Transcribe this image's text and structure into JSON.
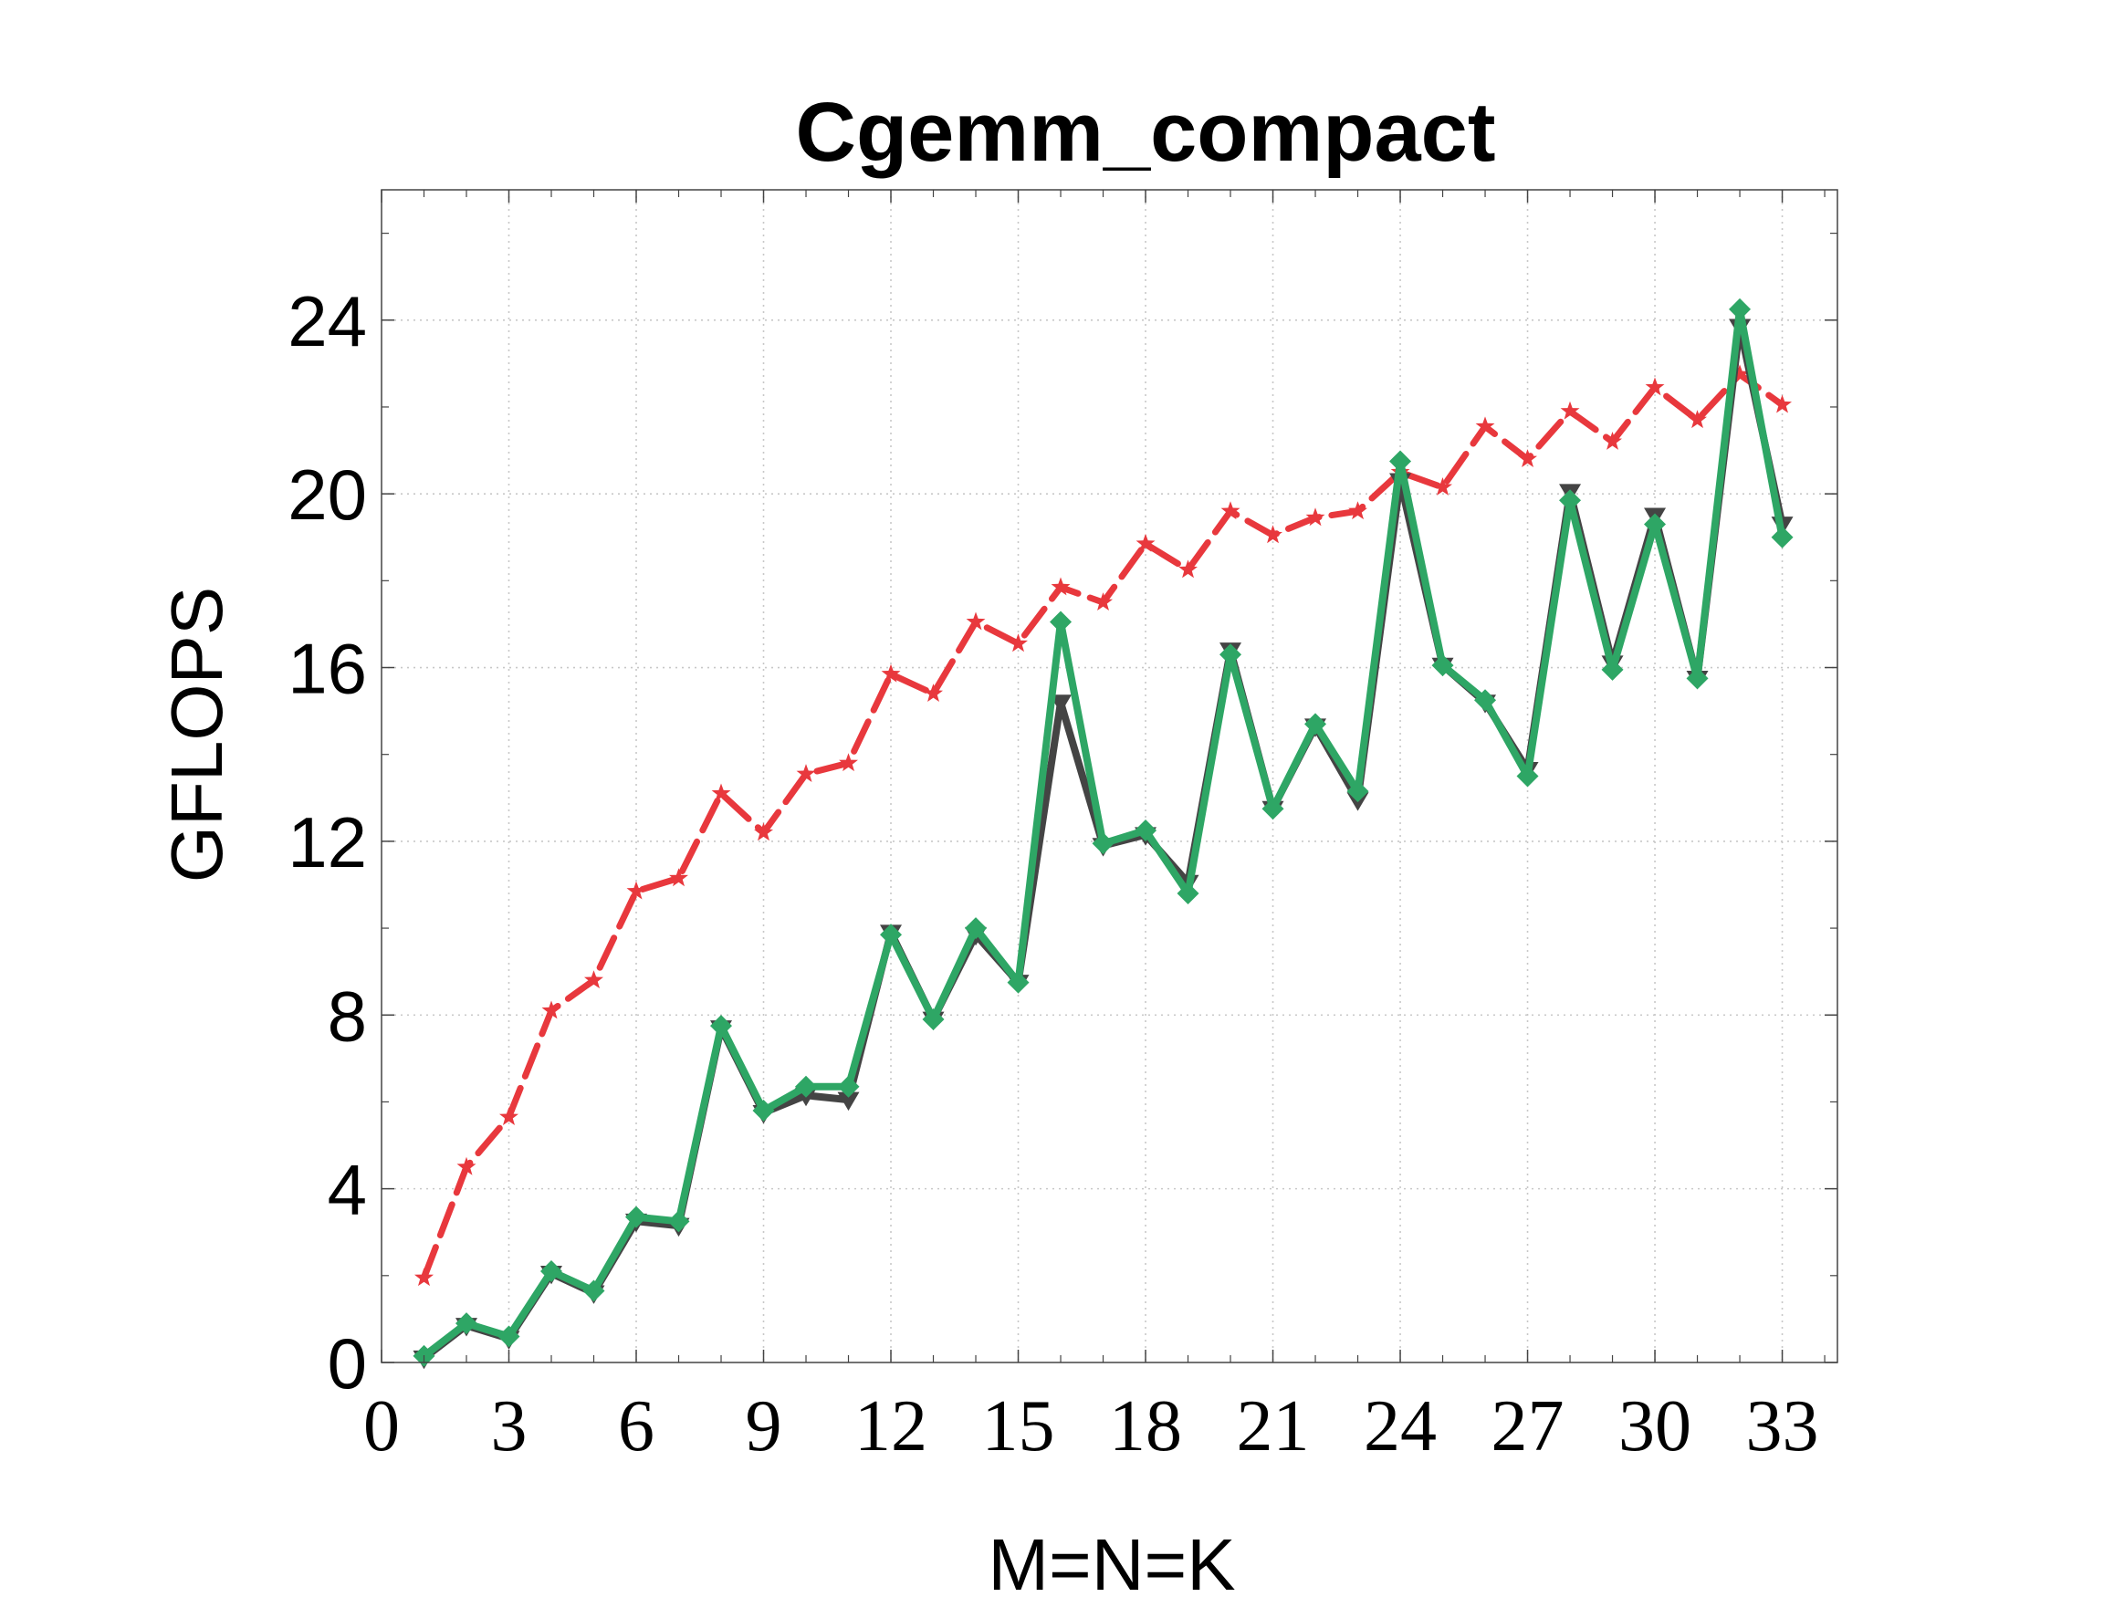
{
  "chart_data": {
    "type": "line",
    "title": "Cgemm_compact",
    "xlabel": "M=N=K",
    "ylabel": "GFLOPS",
    "xlim": [
      0,
      34.3
    ],
    "ylim": [
      0,
      27
    ],
    "xticks": [
      0,
      3,
      6,
      9,
      12,
      15,
      18,
      21,
      24,
      27,
      30,
      33
    ],
    "yticks": [
      0,
      4,
      8,
      12,
      16,
      20,
      24
    ],
    "grid": true,
    "x": [
      1,
      2,
      3,
      4,
      5,
      6,
      7,
      8,
      9,
      10,
      11,
      12,
      13,
      14,
      15,
      16,
      17,
      18,
      19,
      20,
      21,
      22,
      23,
      24,
      25,
      26,
      27,
      28,
      29,
      30,
      31,
      32,
      33
    ],
    "series": [
      {
        "marker": "star",
        "color": "#e8383d",
        "linestyle": "dashed",
        "values": [
          1.95,
          4.5,
          5.65,
          8.1,
          8.8,
          10.85,
          11.15,
          13.1,
          12.2,
          13.55,
          13.8,
          15.85,
          15.4,
          17.05,
          16.55,
          17.85,
          17.5,
          18.85,
          18.25,
          19.6,
          19.05,
          19.45,
          19.6,
          20.5,
          20.15,
          21.55,
          20.8,
          21.9,
          21.2,
          22.45,
          21.7,
          22.75,
          22.05
        ]
      },
      {
        "marker": "triangle-down",
        "color": "#444444",
        "linestyle": "solid",
        "values": [
          0.1,
          0.85,
          0.55,
          2.05,
          1.6,
          3.25,
          3.15,
          7.7,
          5.75,
          6.15,
          6.05,
          9.9,
          7.9,
          9.85,
          8.75,
          15.2,
          11.9,
          12.15,
          11.05,
          16.4,
          12.75,
          14.65,
          12.95,
          20.3,
          16.05,
          15.2,
          13.65,
          20.05,
          16.1,
          19.5,
          15.75,
          23.85,
          19.3
        ]
      },
      {
        "marker": "diamond",
        "color": "#2ea665",
        "linestyle": "solid",
        "values": [
          0.15,
          0.9,
          0.6,
          2.1,
          1.65,
          3.35,
          3.25,
          7.75,
          5.8,
          6.35,
          6.35,
          9.85,
          7.9,
          10.0,
          8.75,
          17.05,
          11.95,
          12.25,
          10.8,
          16.3,
          12.75,
          14.7,
          13.15,
          20.75,
          16.05,
          15.25,
          13.5,
          19.85,
          15.95,
          19.3,
          15.75,
          24.25,
          19.0
        ]
      }
    ]
  },
  "colors": {
    "grid": "#c8c8c8",
    "axes": "#444444",
    "text": "#000000"
  }
}
